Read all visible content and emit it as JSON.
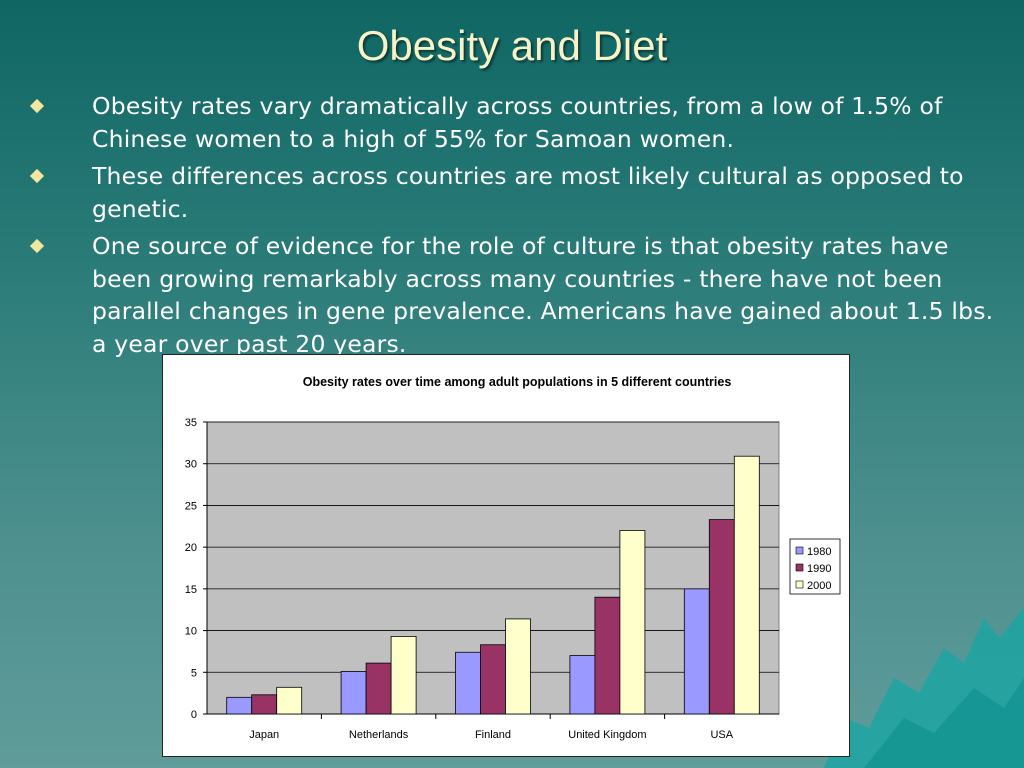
{
  "slide": {
    "title": "Obesity and Diet",
    "bullets": [
      "Obesity rates vary dramatically across countries, from a low of 1.5% of Chinese women to a high of 55% for Samoan women.",
      "These differences across countries are most likely cultural as opposed to genetic.",
      "One source of evidence for the role of culture is that obesity rates have been growing remarkably across many countries - there have not been parallel changes in gene prevalence.  Americans have gained about 1.5 lbs. a year over past 20 years."
    ]
  },
  "colors": {
    "title": "#f8f3c6",
    "bullet_marker": "#f2e6a0",
    "series_1980": "#9999ff",
    "series_1990": "#993366",
    "series_2000": "#ffffcc",
    "plot_area": "#c0c0c0"
  },
  "chart_data": {
    "type": "bar",
    "title": "Obesity rates over time among adult populations in 5 different countries",
    "categories": [
      "Japan",
      "Netherlands",
      "Finland",
      "United Kingdom",
      "USA"
    ],
    "series": [
      {
        "name": "1980",
        "values": [
          2.0,
          5.1,
          7.4,
          7.0,
          15.0
        ]
      },
      {
        "name": "1990",
        "values": [
          2.3,
          6.1,
          8.3,
          14.0,
          23.3
        ]
      },
      {
        "name": "2000",
        "values": [
          3.2,
          9.3,
          11.4,
          22.0,
          30.9
        ]
      }
    ],
    "ylim": [
      0,
      35
    ],
    "yticks": [
      "0",
      "5",
      "10",
      "15",
      "20",
      "25",
      "30",
      "35"
    ],
    "grid": true,
    "legend": "right"
  }
}
